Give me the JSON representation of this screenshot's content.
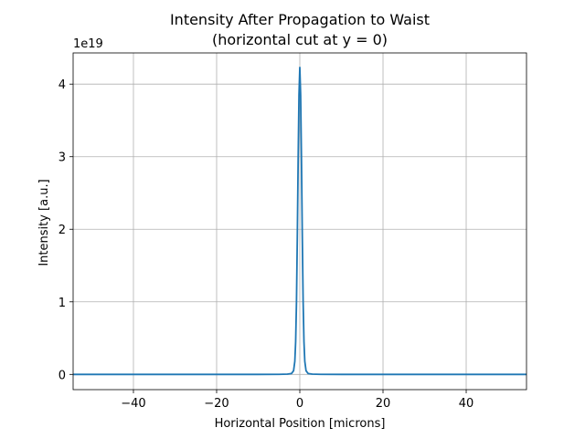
{
  "chart_data": {
    "type": "line",
    "title": "Intensity After Propagation to Waist",
    "subtitle": "(horizontal cut at y = 0)",
    "xlabel": "Horizontal Position [microns]",
    "ylabel": "Intensity [a.u.]",
    "offset_label": "1e19",
    "xlim": [
      -54.5,
      54.5
    ],
    "ylim": [
      -0.21,
      4.43
    ],
    "xticks": [
      -40,
      -20,
      0,
      20,
      40
    ],
    "xtick_labels": [
      "−40",
      "−20",
      "0",
      "20",
      "40"
    ],
    "yticks": [
      0,
      1,
      2,
      3,
      4
    ],
    "ytick_labels": [
      "0",
      "1",
      "2",
      "3",
      "4"
    ],
    "grid": true,
    "series": [
      {
        "name": "intensity",
        "color": "#1f77b4",
        "x": [
          -54.5,
          -20,
          -10,
          -5,
          -3,
          -2,
          -1.5,
          -1.2,
          -1.0,
          -0.8,
          -0.6,
          -0.4,
          -0.2,
          0,
          0.2,
          0.4,
          0.6,
          0.8,
          1.0,
          1.2,
          1.5,
          2,
          3,
          5,
          10,
          20,
          54.5
        ],
        "y": [
          0,
          0,
          0,
          0.0005,
          0.004,
          0.012,
          0.05,
          0.18,
          0.45,
          1.0,
          1.9,
          2.95,
          3.85,
          4.23,
          3.85,
          2.95,
          1.9,
          1.0,
          0.45,
          0.18,
          0.05,
          0.012,
          0.004,
          0.0005,
          0,
          0,
          0
        ]
      }
    ]
  }
}
